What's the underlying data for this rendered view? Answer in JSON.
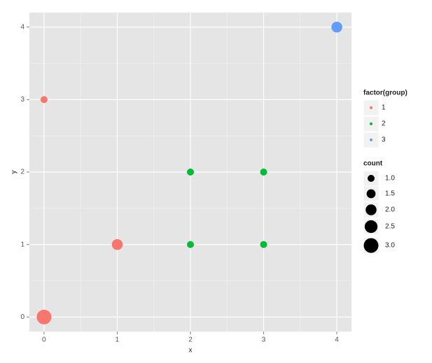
{
  "chart_data": {
    "type": "scatter",
    "x_label": "x",
    "y_label": "y",
    "xlim": [
      -0.2,
      4.2
    ],
    "ylim": [
      -0.2,
      4.2
    ],
    "xticks": [
      0,
      1,
      2,
      3,
      4
    ],
    "yticks": [
      0,
      1,
      2,
      3,
      4
    ],
    "grid": true,
    "color_legend_title": "factor(group)",
    "series": [
      {
        "name": "1",
        "color": "#F8766D",
        "x": [
          0,
          0,
          1
        ],
        "y": [
          0,
          3,
          1
        ],
        "size": [
          3,
          1,
          2
        ]
      },
      {
        "name": "2",
        "color": "#00BA38",
        "x": [
          2,
          3,
          2,
          3
        ],
        "y": [
          2,
          2,
          1,
          1
        ],
        "size": [
          1,
          1,
          1,
          1
        ]
      },
      {
        "name": "3",
        "color": "#619CFF",
        "x": [
          4
        ],
        "y": [
          4
        ],
        "size": [
          2
        ]
      }
    ],
    "size_legend_title": "count",
    "size_breaks": [
      {
        "value": 1,
        "label": "1.0"
      },
      {
        "value": 1.5,
        "label": "1.5"
      },
      {
        "value": 2,
        "label": "2.0"
      },
      {
        "value": 2.5,
        "label": "2.5"
      },
      {
        "value": 3,
        "label": "3.0"
      }
    ],
    "legend_position": "right"
  }
}
